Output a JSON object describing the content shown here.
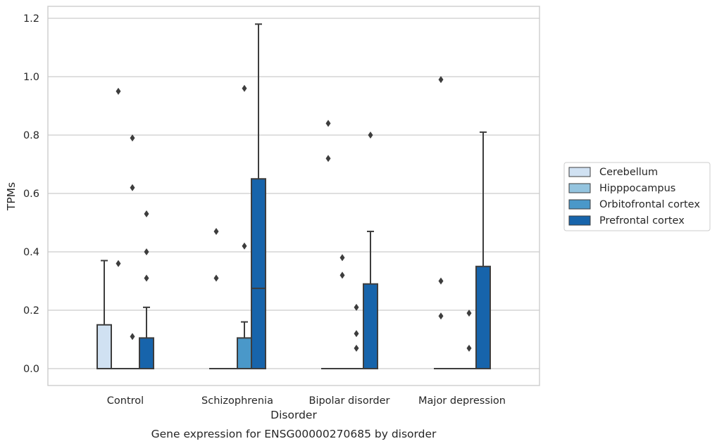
{
  "chart_data": {
    "type": "box",
    "title": "",
    "caption": "Gene expression for ENSG00000270685 by disorder",
    "xlabel": "Disorder",
    "ylabel": "TPMs",
    "ylim": [
      -0.06,
      1.24
    ],
    "yticks": [
      "0.0",
      "0.2",
      "0.4",
      "0.6",
      "0.8",
      "1.0",
      "1.2"
    ],
    "categories": [
      "Control",
      "Schizophrenia",
      "Bipolar disorder",
      "Major depression"
    ],
    "grid": true,
    "legend_position": "right",
    "series": [
      {
        "name": "Cerebellum",
        "color": "#d0e1f2",
        "boxes": [
          {
            "q1": 0,
            "median": 0,
            "q3": 0.15,
            "whisker_low": 0,
            "whisker_high": 0.37,
            "outliers": []
          },
          {
            "q1": 0,
            "median": 0,
            "q3": 0,
            "whisker_low": 0,
            "whisker_high": 0,
            "outliers": [
              0.31,
              0.47
            ]
          },
          {
            "q1": 0,
            "median": 0,
            "q3": 0,
            "whisker_low": 0,
            "whisker_high": 0,
            "outliers": [
              0.72,
              0.84
            ]
          },
          {
            "q1": 0,
            "median": 0,
            "q3": 0,
            "whisker_low": 0,
            "whisker_high": 0,
            "outliers": [
              0.18,
              0.3,
              0.99
            ]
          }
        ]
      },
      {
        "name": "Hipppocampus",
        "color": "#94c4df",
        "boxes": [
          {
            "q1": 0,
            "median": 0,
            "q3": 0,
            "whisker_low": 0,
            "whisker_high": 0,
            "outliers": [
              0.36,
              0.95
            ]
          },
          {
            "q1": 0,
            "median": 0,
            "q3": 0,
            "whisker_low": 0,
            "whisker_high": 0,
            "outliers": []
          },
          {
            "q1": 0,
            "median": 0,
            "q3": 0,
            "whisker_low": 0,
            "whisker_high": 0,
            "outliers": [
              0.32,
              0.38
            ]
          },
          {
            "q1": 0,
            "median": 0,
            "q3": 0,
            "whisker_low": 0,
            "whisker_high": 0,
            "outliers": []
          }
        ]
      },
      {
        "name": "Orbitofrontal cortex",
        "color": "#4a98c9",
        "boxes": [
          {
            "q1": 0,
            "median": 0,
            "q3": 0,
            "whisker_low": 0,
            "whisker_high": 0,
            "outliers": [
              0.11,
              0.62,
              0.79
            ]
          },
          {
            "q1": 0,
            "median": 0,
            "q3": 0.105,
            "whisker_low": 0,
            "whisker_high": 0.16,
            "outliers": [
              0.42,
              0.96
            ]
          },
          {
            "q1": 0,
            "median": 0,
            "q3": 0,
            "whisker_low": 0,
            "whisker_high": 0,
            "outliers": [
              0.07,
              0.12,
              0.21
            ]
          },
          {
            "q1": 0,
            "median": 0,
            "q3": 0,
            "whisker_low": 0,
            "whisker_high": 0,
            "outliers": [
              0.07,
              0.19
            ]
          }
        ]
      },
      {
        "name": "Prefrontal cortex",
        "color": "#1764ab",
        "boxes": [
          {
            "q1": 0,
            "median": 0,
            "q3": 0.105,
            "whisker_low": 0,
            "whisker_high": 0.21,
            "outliers": [
              0.31,
              0.4,
              0.53
            ]
          },
          {
            "q1": 0,
            "median": 0.275,
            "q3": 0.65,
            "whisker_low": 0,
            "whisker_high": 1.18,
            "outliers": []
          },
          {
            "q1": 0,
            "median": 0,
            "q3": 0.29,
            "whisker_low": 0,
            "whisker_high": 0.47,
            "outliers": [
              0.8
            ]
          },
          {
            "q1": 0,
            "median": 0,
            "q3": 0.35,
            "whisker_low": 0,
            "whisker_high": 0.81,
            "outliers": []
          }
        ]
      }
    ]
  }
}
